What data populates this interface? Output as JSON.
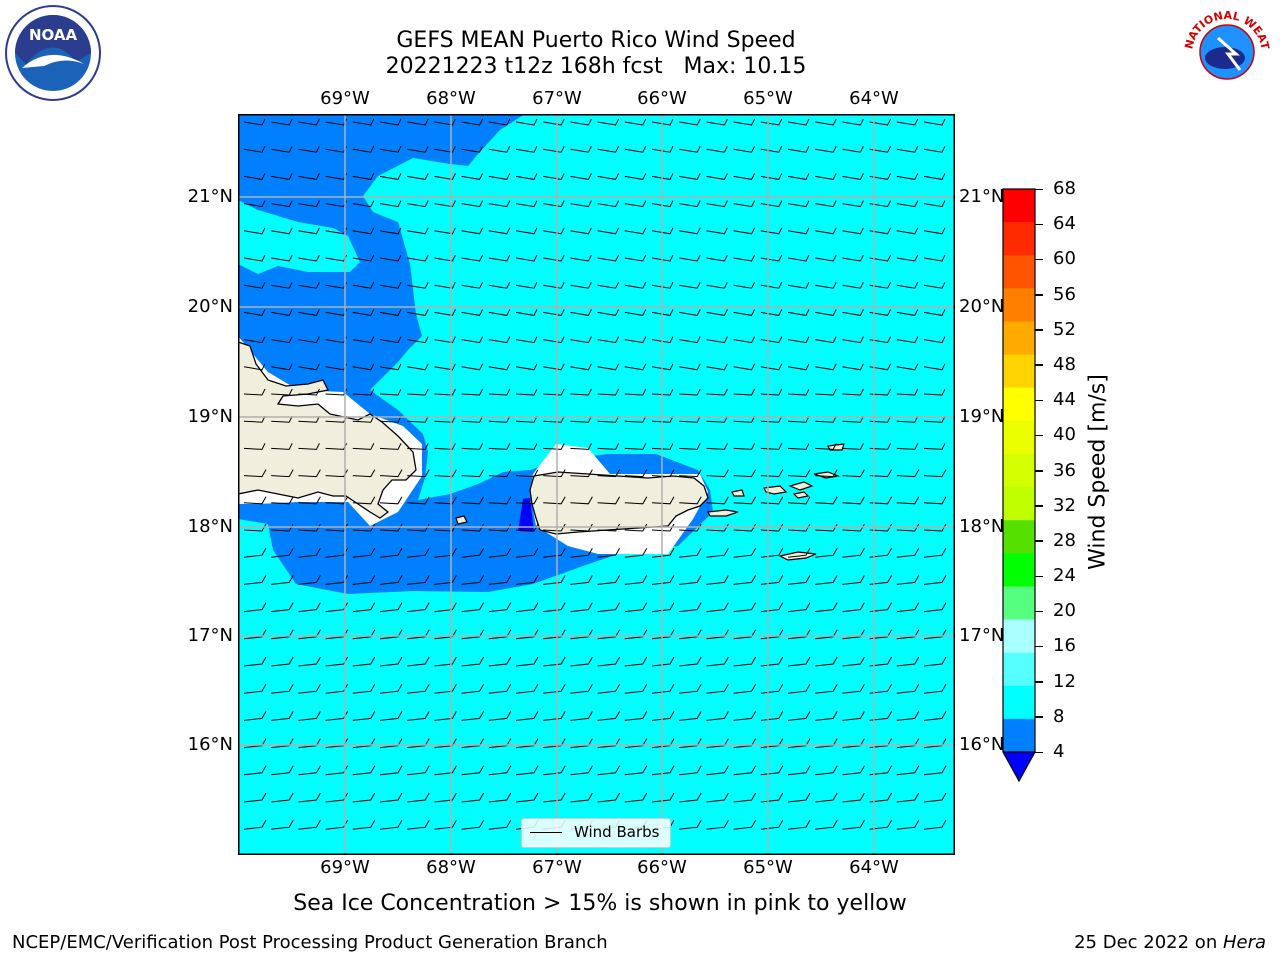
{
  "title": {
    "line1": "GEFS MEAN Puerto Rico Wind Speed",
    "line2": "20221223 t12z 168h fcst   Max: 10.15"
  },
  "map": {
    "lon_ticks": [
      "69°W",
      "68°W",
      "67°W",
      "66°W",
      "65°W",
      "64°W"
    ],
    "lat_ticks": [
      "21°N",
      "20°N",
      "19°N",
      "18°N",
      "17°N",
      "16°N"
    ],
    "lon_range": [
      -70,
      -63.25
    ],
    "lat_range": [
      15,
      21.75
    ],
    "grid": true,
    "colors": {
      "speed_0_4": "#0000ff",
      "speed_4_8": "#0080ff",
      "speed_8_12": "#00ffff",
      "land": "#f0eedc",
      "gridline": "#b0b0b0"
    },
    "barb_direction": "from-east"
  },
  "colorbar": {
    "label": "Wind Speed [m/s]",
    "ticks": [
      "68",
      "64",
      "60",
      "56",
      "52",
      "48",
      "44",
      "40",
      "36",
      "32",
      "28",
      "24",
      "20",
      "16",
      "12",
      "8",
      "4"
    ],
    "colors_top_to_bottom": [
      "#ff0000",
      "#ff2a00",
      "#ff5500",
      "#ff8000",
      "#ffaa00",
      "#ffd400",
      "#ffff00",
      "#ebff00",
      "#d4ff00",
      "#bfff00",
      "#55e000",
      "#00ff00",
      "#55ff80",
      "#aaffff",
      "#55ffff",
      "#00ffff",
      "#0080ff"
    ],
    "extend_color": "#0000ff"
  },
  "legend": {
    "label": "Wind Barbs"
  },
  "subtitle": "Sea Ice Concentration > 15% is shown in pink to yellow",
  "footer": {
    "left": "NCEP/EMC/Verification Post Processing Product Generation Branch",
    "right_prefix": "25 Dec 2022 on ",
    "right_machine": "Hera"
  },
  "logos": {
    "left": "NOAA",
    "right": "NATIONAL WEATHER SERVICE"
  }
}
